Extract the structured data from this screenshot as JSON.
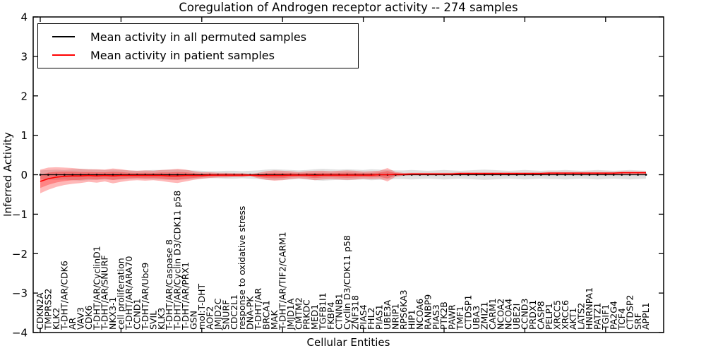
{
  "chart_data": {
    "type": "line",
    "title": "Coregulation of Androgen receptor activity -- 274 samples",
    "xlabel": "Cellular Entities",
    "ylabel": "Inferred Activity",
    "ylim": [
      -4,
      4
    ],
    "yticks": [
      -4,
      -3,
      -2,
      -1,
      0,
      1,
      2,
      3,
      4
    ],
    "x_major_tick_every": 10,
    "grid": false,
    "legend_position": "upper left",
    "categories": [
      "CDKN2A",
      "TMPRSS2",
      "KLK2",
      "T-DHT/AR/CDK6",
      "AR",
      "VAV3",
      "CDK6",
      "T-DHT/AR/CyclinD1",
      "T-DHT/AR/SNURF",
      "NKX3-1",
      "cell proliferation",
      "T-DHT/AR/ARA70",
      "CCND1",
      "T-DHT/AR/Ubc9",
      "SVIL",
      "KLK3",
      "T-DHT/AR/Caspase 8",
      "T-DHT/AR/Cyclin D3/CDK11 p58",
      "T-DHT/AR/PRX1",
      "GSN",
      "mol:T-DHT",
      "AOF2",
      "JMJD2C",
      "SNURF",
      "CDC2L1",
      "response to oxidative stress",
      "DNA-PK",
      "T-DHT/AR",
      "BRCA1",
      "MAK",
      "T-DHT/AR/TIF2/CARM1",
      "JMJD1A",
      "CMTM2",
      "PRKDC",
      "MED1",
      "TGFB1I1",
      "FKBP4",
      "CTNNB1",
      "Cyclin D3/CDK11 p58",
      "ZNF318",
      "PIAS4",
      "FHL2",
      "PIAS1",
      "UBE3A",
      "NRIP1",
      "RPS6KA3",
      "HIP1",
      "NCOA6",
      "RANBP9",
      "PIAS3",
      "PTK2B",
      "PAWR",
      "TMF1",
      "CTDSP1",
      "UBA3",
      "ZMIZ1",
      "CARM1",
      "NCOA2",
      "NCOA4",
      "UBE2I",
      "CCND3",
      "PRDX1",
      "CASP8",
      "PELP1",
      "XRCC5",
      "XRCC6",
      "AKT1",
      "LATS2",
      "HNRNPA1",
      "PATZ1",
      "TGIF1",
      "PA2G4",
      "TCF4",
      "CTDSP2",
      "SRF",
      "APPL1"
    ],
    "series": [
      {
        "name": "Mean activity in all permuted samples",
        "color": "#000000",
        "band_fill": "#000000",
        "band_alpha": 0.12,
        "values": [
          0,
          0,
          0,
          0,
          0,
          0,
          0,
          0,
          0,
          0,
          0,
          0,
          0,
          0,
          0,
          0,
          0,
          0,
          0,
          0,
          0,
          0,
          0,
          0,
          0,
          0,
          0,
          0,
          0,
          0,
          0,
          0,
          0,
          0,
          0,
          0,
          0,
          0,
          0,
          0,
          0,
          0,
          0,
          0,
          0,
          0,
          0,
          0,
          0,
          0,
          0,
          0,
          0,
          0,
          0,
          0,
          0,
          0,
          0,
          0,
          0,
          0,
          0,
          0,
          0,
          0,
          0,
          0,
          0,
          0,
          0,
          0,
          0,
          0,
          0,
          0
        ],
        "band_std": [
          0.11,
          0.12,
          0.13,
          0.12,
          0.14,
          0.15,
          0.14,
          0.13,
          0.12,
          0.13,
          0.12,
          0.11,
          0.1,
          0.11,
          0.12,
          0.12,
          0.13,
          0.13,
          0.12,
          0.11,
          0.1,
          0.09,
          0.09,
          0.1,
          0.1,
          0.09,
          0.1,
          0.11,
          0.13,
          0.14,
          0.13,
          0.12,
          0.11,
          0.12,
          0.14,
          0.15,
          0.14,
          0.13,
          0.14,
          0.13,
          0.12,
          0.14,
          0.13,
          0.12,
          0.11,
          0.11,
          0.12,
          0.11,
          0.1,
          0.11,
          0.12,
          0.11,
          0.1,
          0.11,
          0.12,
          0.13,
          0.12,
          0.11,
          0.1,
          0.11,
          0.12,
          0.11,
          0.1,
          0.11,
          0.11,
          0.12,
          0.11,
          0.1,
          0.11,
          0.12,
          0.11,
          0.1,
          0.11,
          0.12,
          0.11,
          0.1
        ]
      },
      {
        "name": "Mean activity in patient samples",
        "color": "#ff0000",
        "band_fill": "#ff0000",
        "band_alpha": 0.28,
        "values": [
          -0.17,
          -0.1,
          -0.06,
          -0.04,
          -0.03,
          -0.03,
          -0.02,
          -0.03,
          -0.02,
          -0.03,
          -0.02,
          -0.02,
          -0.02,
          -0.02,
          -0.02,
          -0.02,
          -0.03,
          -0.03,
          -0.02,
          -0.02,
          -0.02,
          -0.01,
          -0.01,
          -0.01,
          -0.01,
          -0.01,
          -0.01,
          -0.02,
          -0.02,
          -0.02,
          -0.02,
          -0.01,
          -0.01,
          -0.01,
          -0.02,
          -0.01,
          -0.01,
          -0.01,
          -0.01,
          -0.01,
          -0.01,
          -0.01,
          0.0,
          0.0,
          0.01,
          0.01,
          0.02,
          0.02,
          0.02,
          0.02,
          0.02,
          0.02,
          0.03,
          0.03,
          0.03,
          0.03,
          0.03,
          0.03,
          0.03,
          0.03,
          0.03,
          0.03,
          0.03,
          0.04,
          0.04,
          0.04,
          0.04,
          0.04,
          0.04,
          0.04,
          0.04,
          0.04,
          0.05,
          0.05,
          0.05,
          0.05
        ],
        "band_std": [
          0.3,
          0.28,
          0.25,
          0.22,
          0.2,
          0.18,
          0.16,
          0.17,
          0.15,
          0.19,
          0.16,
          0.13,
          0.12,
          0.13,
          0.12,
          0.14,
          0.16,
          0.18,
          0.15,
          0.11,
          0.08,
          0.07,
          0.06,
          0.06,
          0.05,
          0.05,
          0.03,
          0.07,
          0.11,
          0.13,
          0.12,
          0.1,
          0.08,
          0.1,
          0.12,
          0.11,
          0.1,
          0.11,
          0.12,
          0.11,
          0.09,
          0.1,
          0.1,
          0.17,
          0.06,
          0.035,
          0.03,
          0.03,
          0.03,
          0.03,
          0.03,
          0.03,
          0.03,
          0.03,
          0.03,
          0.03,
          0.03,
          0.03,
          0.03,
          0.03,
          0.03,
          0.03,
          0.03,
          0.03,
          0.03,
          0.03,
          0.03,
          0.03,
          0.03,
          0.03,
          0.03,
          0.03,
          0.03,
          0.03,
          0.03,
          0.03
        ]
      }
    ],
    "colors": {
      "axis": "#000000",
      "background": "#ffffff",
      "permuted_line": "#000000",
      "patient_line": "#ff0000"
    }
  }
}
